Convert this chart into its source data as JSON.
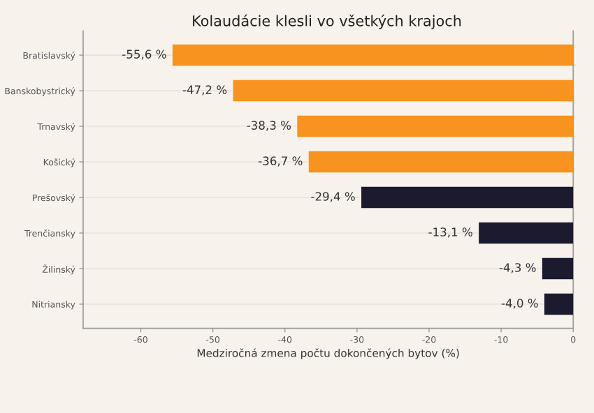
{
  "chart_data": {
    "type": "bar",
    "orientation": "horizontal",
    "title": "Kolaudácie klesli vo všetkých krajoch",
    "xlabel": "Medziročná zmena počtu dokončených bytov (%)",
    "categories": [
      "Bratislavský",
      "Banskobystrický",
      "Trnavský",
      "Košický",
      "Prešovský",
      "Trenčiansky",
      "Žilinský",
      "Nitriansky"
    ],
    "values": [
      -55.6,
      -47.2,
      -38.3,
      -36.7,
      -29.4,
      -13.1,
      -4.3,
      -4.0
    ],
    "colors": [
      "#f7931e",
      "#f7931e",
      "#f7931e",
      "#f7931e",
      "#1c1a2e",
      "#1c1a2e",
      "#1c1a2e",
      "#1c1a2e"
    ],
    "value_labels": [
      "-55,6 %",
      "-47,2 %",
      "-38,3 %",
      "-36,7 %",
      "-29,4 %",
      "-13,1 %",
      "-4,3 %",
      "-4,0 %"
    ],
    "xlim": [
      -68,
      0
    ],
    "xticks": [
      -60,
      -50,
      -40,
      -30,
      -20,
      -10,
      0
    ],
    "grid": "y",
    "legend": false
  }
}
